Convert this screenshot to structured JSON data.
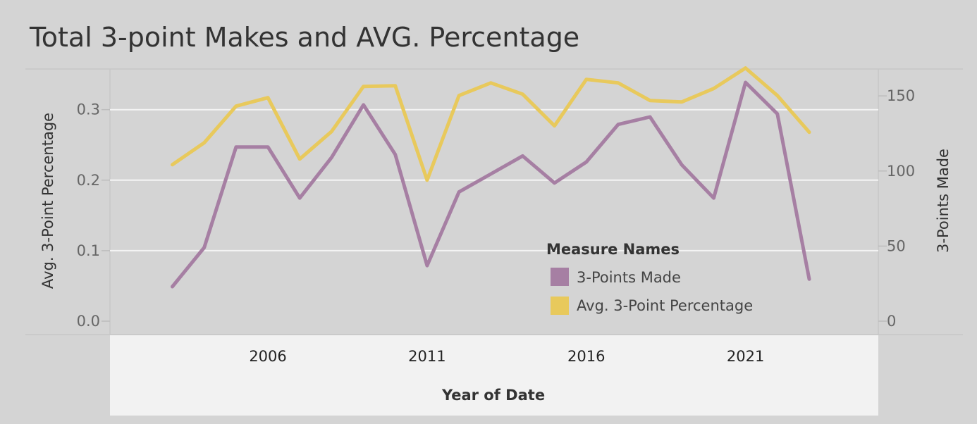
{
  "title": "Total 3-point Makes and AVG. Percentage",
  "colors": {
    "background": "#d4d4d4",
    "x_axis_band": "#f2f2f2",
    "gridline": "#f4f4f4",
    "three_points_made": "#a67fa3",
    "avg_percentage": "#e8c95c"
  },
  "chart_data": {
    "type": "line",
    "title": "Total 3-point Makes and AVG. Percentage",
    "xlabel": "Year of Date",
    "ylabel_left": "Avg. 3-Point Percentage",
    "ylabel_right": "3-Points Made",
    "x": [
      2003,
      2004,
      2005,
      2006,
      2007,
      2008,
      2009,
      2010,
      2011,
      2012,
      2013,
      2014,
      2015,
      2016,
      2017,
      2018,
      2019,
      2020,
      2021,
      2022,
      2023
    ],
    "x_ticks": [
      "2006",
      "2011",
      "2016",
      "2021"
    ],
    "y_left_ticks": [
      "0.0",
      "0.1",
      "0.2",
      "0.3"
    ],
    "y_right_ticks": [
      "0",
      "50",
      "100",
      "150"
    ],
    "ylim_left": [
      0,
      0.36
    ],
    "ylim_right": [
      0,
      169
    ],
    "grid": true,
    "legend": {
      "title": "Measure Names",
      "position": "center-right",
      "entries": [
        "3-Points Made",
        "Avg. 3-Point Percentage"
      ]
    },
    "series": [
      {
        "name": "3-Points Made",
        "axis": "right",
        "color": "#a67fa3",
        "values": [
          23,
          49,
          116,
          116,
          82,
          109,
          144,
          111,
          37,
          86,
          98,
          110,
          92,
          106,
          131,
          136,
          104,
          82,
          159,
          138,
          28
        ]
      },
      {
        "name": "Avg. 3-Point Percentage",
        "axis": "left",
        "color": "#e8c95c",
        "values": [
          0.222,
          0.253,
          0.305,
          0.317,
          0.23,
          0.269,
          0.333,
          0.334,
          0.2,
          0.32,
          0.338,
          0.322,
          0.277,
          0.343,
          0.338,
          0.313,
          0.311,
          0.33,
          0.359,
          0.32,
          0.268
        ]
      }
    ]
  }
}
